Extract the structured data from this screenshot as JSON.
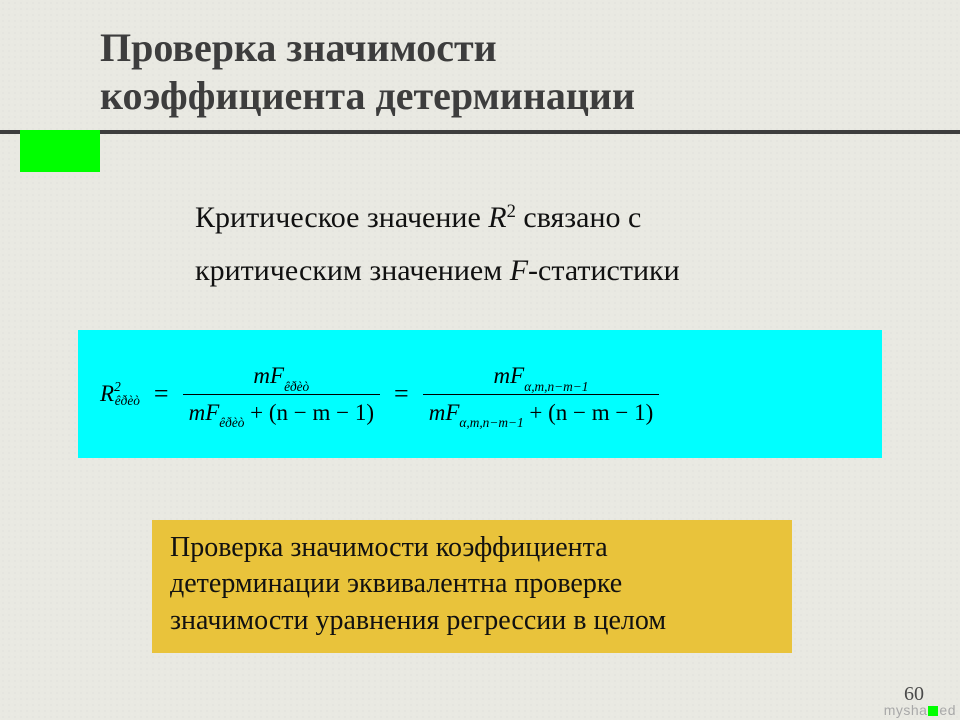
{
  "title": {
    "line1": "Проверка значимости",
    "line2": "коэффициента детерминации"
  },
  "intro": {
    "pre": "Критическое значение ",
    "var": "R",
    "exp": "2",
    "mid": " связано с критическим значением ",
    "var2": "F",
    "post": "-статистики"
  },
  "formula": {
    "lhs_var": "R",
    "lhs_sup": "2",
    "lhs_sub": "êðèò",
    "eq": "=",
    "frac1": {
      "num": "mF",
      "num_sub": "êðèò",
      "den_a": "mF",
      "den_a_sub": "êðèò",
      "den_b": " + (n − m − 1)"
    },
    "frac2": {
      "num": "mF",
      "num_sub": "α,m,n−m−1",
      "den_a": "mF",
      "den_a_sub": "α,m,n−m−1",
      "den_b": " + (n − m − 1)"
    }
  },
  "note": {
    "line1": "Проверка значимости коэффициента",
    "line2": "детерминации эквивалентна проверке",
    "line3": "значимости уравнения регрессии в целом"
  },
  "page_number": "60",
  "watermark": {
    "pre": "mysha",
    "post": "ed"
  },
  "colors": {
    "accent_green": "#00ff00",
    "formula_bg": "#00ffff",
    "note_bg": "#e9c33b",
    "title_color": "#3d3d3d",
    "rule_color": "#3d3d3d",
    "background": "#e9e9e2"
  }
}
